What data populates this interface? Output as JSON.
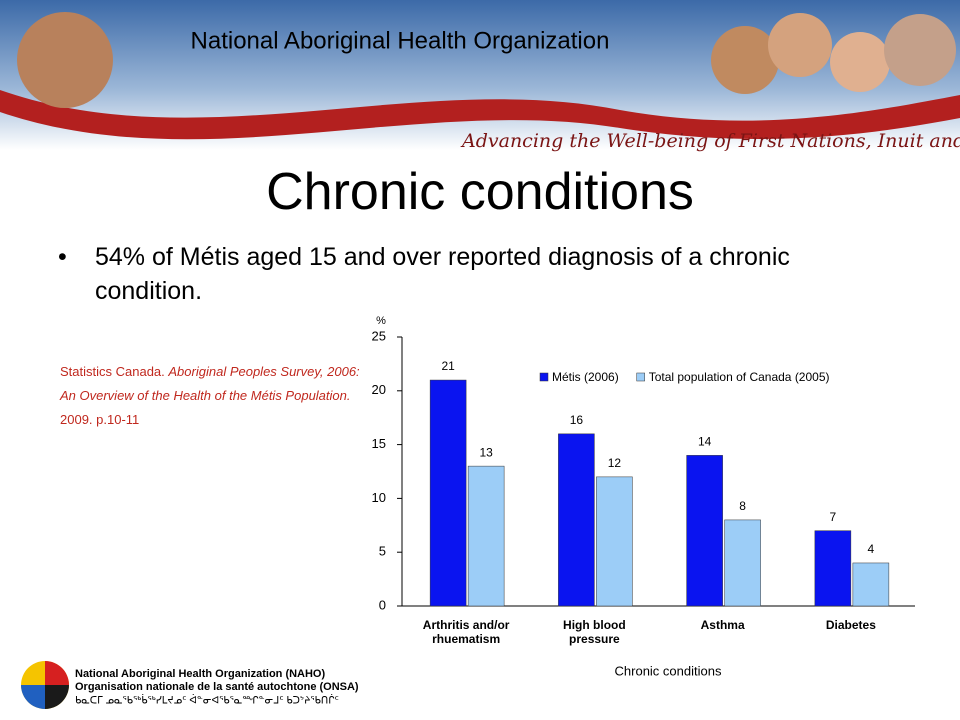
{
  "header": {
    "organization": "National Aboriginal Health Organization",
    "tagline": "Advancing the Well-being of First Nations, Inuit and Métis"
  },
  "slide": {
    "title": "Chronic conditions",
    "bullet": "54% of Métis aged 15 and over reported diagnosis of a chronic condition.",
    "citation": [
      "Statistics Canada. ",
      "Aboriginal Peoples Survey, 2006: An Overview of the Health of the Métis Population.",
      " 2009. p.10-11"
    ]
  },
  "chart_data": {
    "type": "bar",
    "y_label": "%",
    "x_label": "Chronic conditions",
    "categories": [
      "Arthritis and/or rhuematism",
      "High blood pressure",
      "Asthma",
      "Diabetes"
    ],
    "series": [
      {
        "name": "Métis (2006)",
        "color": "#0a14f0",
        "values": [
          21,
          16,
          14,
          7
        ]
      },
      {
        "name": "Total population of Canada (2005)",
        "color": "#9ccdf7",
        "values": [
          13,
          12,
          8,
          4
        ]
      }
    ],
    "ylim": [
      0,
      25
    ],
    "yticks": [
      0,
      5,
      10,
      15,
      20,
      25
    ],
    "legend": "top-right"
  },
  "footer": {
    "lines": [
      "National Aboriginal Health Organization (NAHO)",
      "Organisation nationale de la santé autochtone (ONSA)",
      "ᑲᓇᑕᒥ ᓄᓇᖃᖅᑳᖅᓯᒪᔪᓄᑦ ᐋᓐᓂᐊᖃᕐᓇᙱᓐᓂᒧᑦ ᑲᑐᔾᔨᖃᑎᒌᑦ"
    ]
  }
}
